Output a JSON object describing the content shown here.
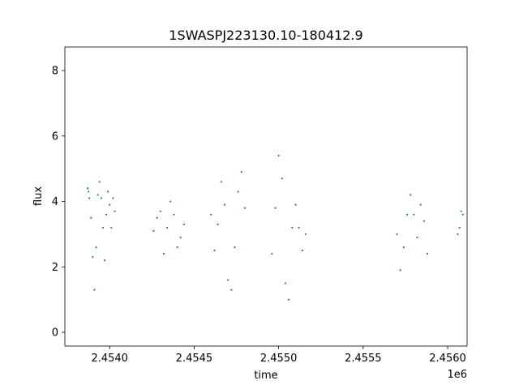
{
  "chart_data": {
    "type": "scatter",
    "title": "1SWASPJ223130.10-180412.9",
    "xlabel": "time",
    "ylabel": "flux",
    "x_offset_label": "1e6",
    "xlim": [
      2453735,
      2456115
    ],
    "ylim": [
      -0.42,
      8.72
    ],
    "x_ticks": [
      2454000,
      2454500,
      2455000,
      2455500,
      2456000
    ],
    "x_tick_labels": [
      "2.4540",
      "2.4545",
      "2.4550",
      "2.4555",
      "2.4560"
    ],
    "y_ticks": [
      0,
      2,
      4,
      6,
      8
    ],
    "y_tick_labels": [
      "0",
      "2",
      "4",
      "6",
      "8"
    ],
    "grid": false,
    "marker_color": "#1f77b4",
    "series": [
      {
        "x": [
          2453870,
          2453875,
          2453880,
          2453890,
          2453900,
          2453910,
          2453920,
          2453930,
          2453940,
          2453950,
          2453960,
          2453970,
          2453980,
          2453990,
          2454000,
          2454010,
          2454020,
          2454030,
          2454260,
          2454280,
          2454300,
          2454320,
          2454340,
          2454360,
          2454380,
          2454400,
          2454420,
          2454440,
          2454600,
          2454620,
          2454640,
          2454660,
          2454680,
          2454700,
          2454720,
          2454740,
          2454760,
          2454780,
          2454800,
          2454960,
          2454980,
          2455000,
          2455020,
          2455040,
          2455060,
          2455080,
          2455100,
          2455120,
          2455140,
          2455160,
          2455700,
          2455720,
          2455740,
          2455760,
          2455780,
          2455800,
          2455820,
          2455840,
          2455860,
          2455880,
          2456060,
          2456070,
          2456080,
          2456090
        ],
        "y": [
          4.4,
          4.3,
          4.1,
          3.5,
          2.3,
          1.3,
          2.6,
          4.2,
          4.6,
          4.1,
          3.2,
          2.2,
          3.6,
          4.3,
          3.9,
          3.2,
          4.1,
          3.7,
          3.1,
          3.5,
          3.7,
          2.4,
          3.2,
          4.0,
          3.6,
          2.6,
          2.9,
          3.3,
          3.6,
          2.5,
          3.3,
          4.6,
          3.9,
          1.6,
          1.3,
          2.6,
          4.3,
          4.9,
          3.8,
          2.4,
          3.8,
          5.4,
          4.7,
          1.5,
          1.0,
          3.2,
          3.9,
          3.2,
          2.5,
          3.0,
          3.0,
          1.9,
          2.6,
          3.6,
          4.2,
          3.6,
          2.9,
          3.9,
          3.4,
          2.4,
          3.0,
          3.2,
          3.7,
          3.6
        ]
      }
    ]
  }
}
